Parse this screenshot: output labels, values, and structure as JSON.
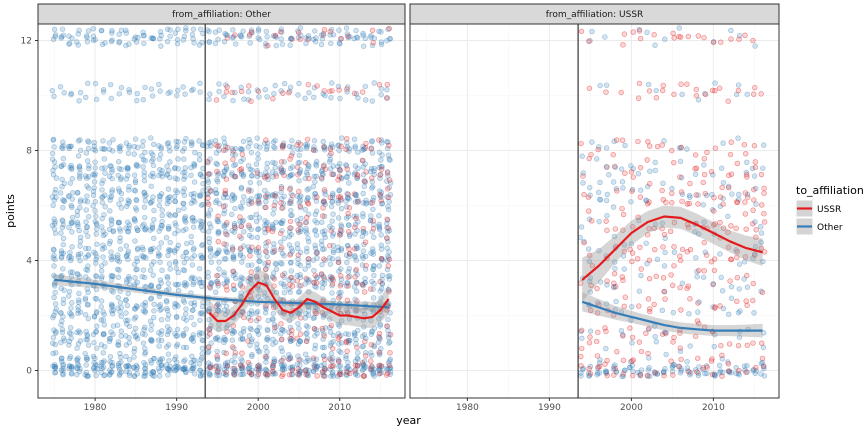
{
  "chart_data": {
    "type": "scatter",
    "x_label": "year",
    "y_label": "points",
    "x_ticks": [
      1980,
      1990,
      2000,
      2010
    ],
    "y_ticks": [
      0,
      4,
      8,
      12
    ],
    "xlim": [
      1973,
      2018
    ],
    "ylim": [
      -1,
      12.6
    ],
    "vline_x": 1993.5,
    "grid": true,
    "legend": {
      "title": "to_affiliation",
      "position": "right",
      "entries": [
        {
          "label": "USSR",
          "color": "#e41a1c"
        },
        {
          "label": "Other",
          "color": "#377eb8"
        }
      ]
    },
    "point_levels": [
      0,
      0.25,
      0.5,
      1,
      1.25,
      1.5,
      2,
      2.25,
      2.5,
      3,
      3.25,
      3.5,
      4,
      4.25,
      4.5,
      5,
      5.25,
      5.5,
      6,
      6.25,
      6.5,
      7,
      7.25,
      7.5,
      8,
      8.25,
      10,
      10.25,
      12,
      12.25
    ],
    "panels": [
      {
        "strip": "from_affiliation: Other",
        "other_point_years": [
          1975,
          2016
        ],
        "ussr_point_years": [
          1994,
          2016
        ],
        "smooth": [
          {
            "series": "Other",
            "x": [
              1975,
              1980,
              1985,
              1990,
              1995,
              2000,
              2005,
              2010,
              2016
            ],
            "y": [
              3.3,
              3.15,
              2.95,
              2.75,
              2.6,
              2.5,
              2.45,
              2.4,
              2.3
            ],
            "band": [
              0.2,
              0.15,
              0.12,
              0.1,
              0.1,
              0.1,
              0.1,
              0.12,
              0.2
            ]
          },
          {
            "series": "USSR",
            "x": [
              1994,
              1995,
              1996,
              1997,
              1998,
              1999,
              2000,
              2001,
              2002,
              2003,
              2004,
              2005,
              2006,
              2007,
              2008,
              2009,
              2010,
              2011,
              2012,
              2013,
              2014,
              2015,
              2016
            ],
            "y": [
              2.1,
              1.8,
              1.8,
              2.0,
              2.4,
              2.9,
              3.2,
              3.1,
              2.6,
              2.2,
              2.1,
              2.3,
              2.6,
              2.5,
              2.3,
              2.15,
              2.0,
              2.0,
              1.95,
              1.9,
              1.95,
              2.2,
              2.6
            ],
            "band": [
              0.5,
              0.4,
              0.35,
              0.35,
              0.4,
              0.45,
              0.5,
              0.45,
              0.4,
              0.35,
              0.35,
              0.35,
              0.35,
              0.35,
              0.35,
              0.35,
              0.35,
              0.35,
              0.35,
              0.35,
              0.4,
              0.45,
              0.55
            ]
          }
        ]
      },
      {
        "strip": "from_affiliation: USSR",
        "other_point_years": [
          1994,
          2016
        ],
        "ussr_point_years": [
          1994,
          2016
        ],
        "smooth": [
          {
            "series": "USSR",
            "x": [
              1994,
              1996,
              1998,
              2000,
              2002,
              2004,
              2006,
              2008,
              2010,
              2012,
              2014,
              2016
            ],
            "y": [
              3.3,
              3.8,
              4.4,
              5.0,
              5.4,
              5.6,
              5.55,
              5.3,
              5.0,
              4.7,
              4.45,
              4.3
            ],
            "band": [
              0.8,
              0.6,
              0.5,
              0.45,
              0.4,
              0.4,
              0.4,
              0.4,
              0.4,
              0.4,
              0.45,
              0.5
            ]
          },
          {
            "series": "Other",
            "x": [
              1994,
              1996,
              1998,
              2000,
              2002,
              2004,
              2006,
              2008,
              2010,
              2012,
              2014,
              2016
            ],
            "y": [
              2.5,
              2.3,
              2.1,
              1.95,
              1.8,
              1.65,
              1.55,
              1.5,
              1.45,
              1.45,
              1.45,
              1.45
            ],
            "band": [
              0.35,
              0.3,
              0.25,
              0.22,
              0.2,
              0.2,
              0.2,
              0.2,
              0.2,
              0.2,
              0.22,
              0.25
            ]
          }
        ]
      }
    ]
  }
}
